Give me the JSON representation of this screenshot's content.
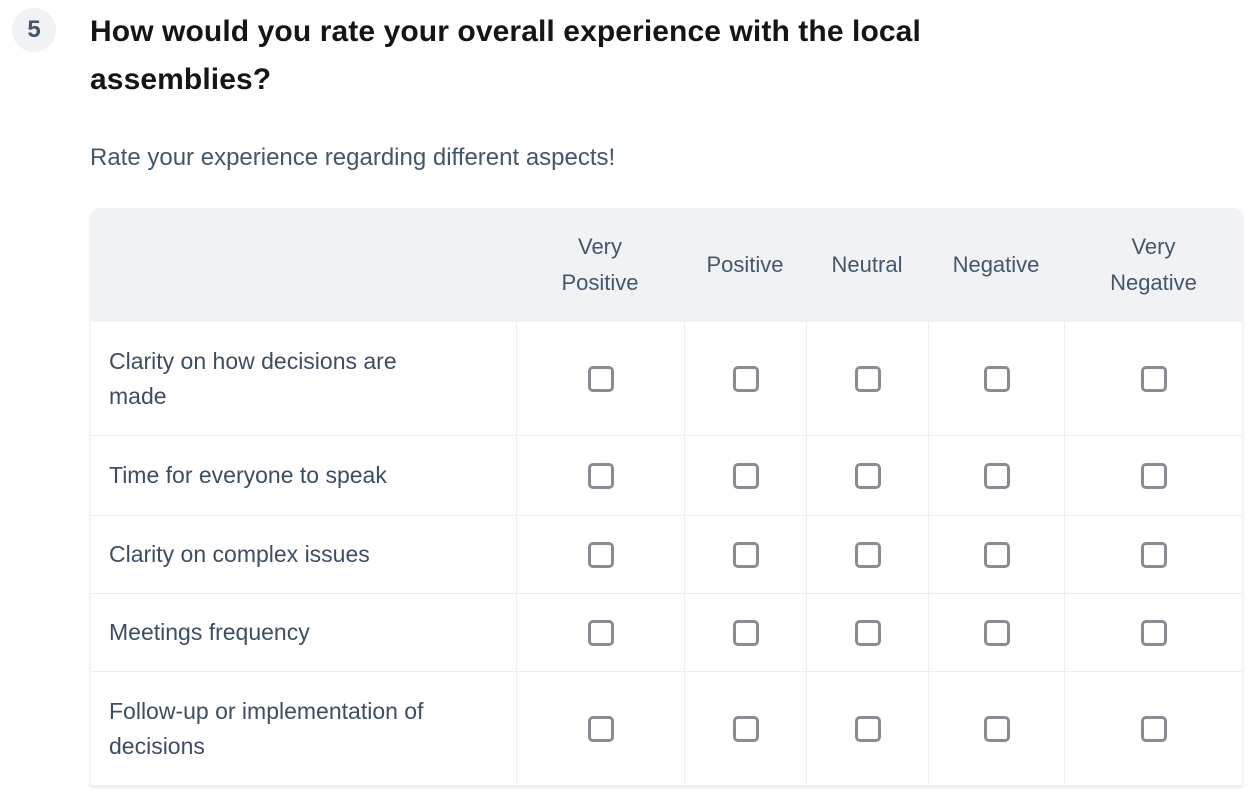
{
  "question": {
    "number": "5",
    "title": "How would you rate your overall experience with the local assemblies?",
    "subtitle": "Rate your experience regarding different aspects!"
  },
  "table": {
    "columns": [
      "Very Positive",
      "Positive",
      "Neutral",
      "Negative",
      "Very Negative"
    ],
    "rows": [
      {
        "label": "Clarity on how decisions are made",
        "selected": null
      },
      {
        "label": "Time for everyone to speak",
        "selected": null
      },
      {
        "label": "Clarity on complex issues",
        "selected": null
      },
      {
        "label": "Meetings frequency",
        "selected": null
      },
      {
        "label": "Follow-up or implementation of decisions",
        "selected": null
      }
    ]
  },
  "colors": {
    "header_bg": "#f0f2f5",
    "badge_bg": "#f0f2f6",
    "slate_text": "#44566b",
    "title_text": "#151515",
    "checkbox_border": "#8b8b94",
    "row_border": "#eceef2"
  }
}
